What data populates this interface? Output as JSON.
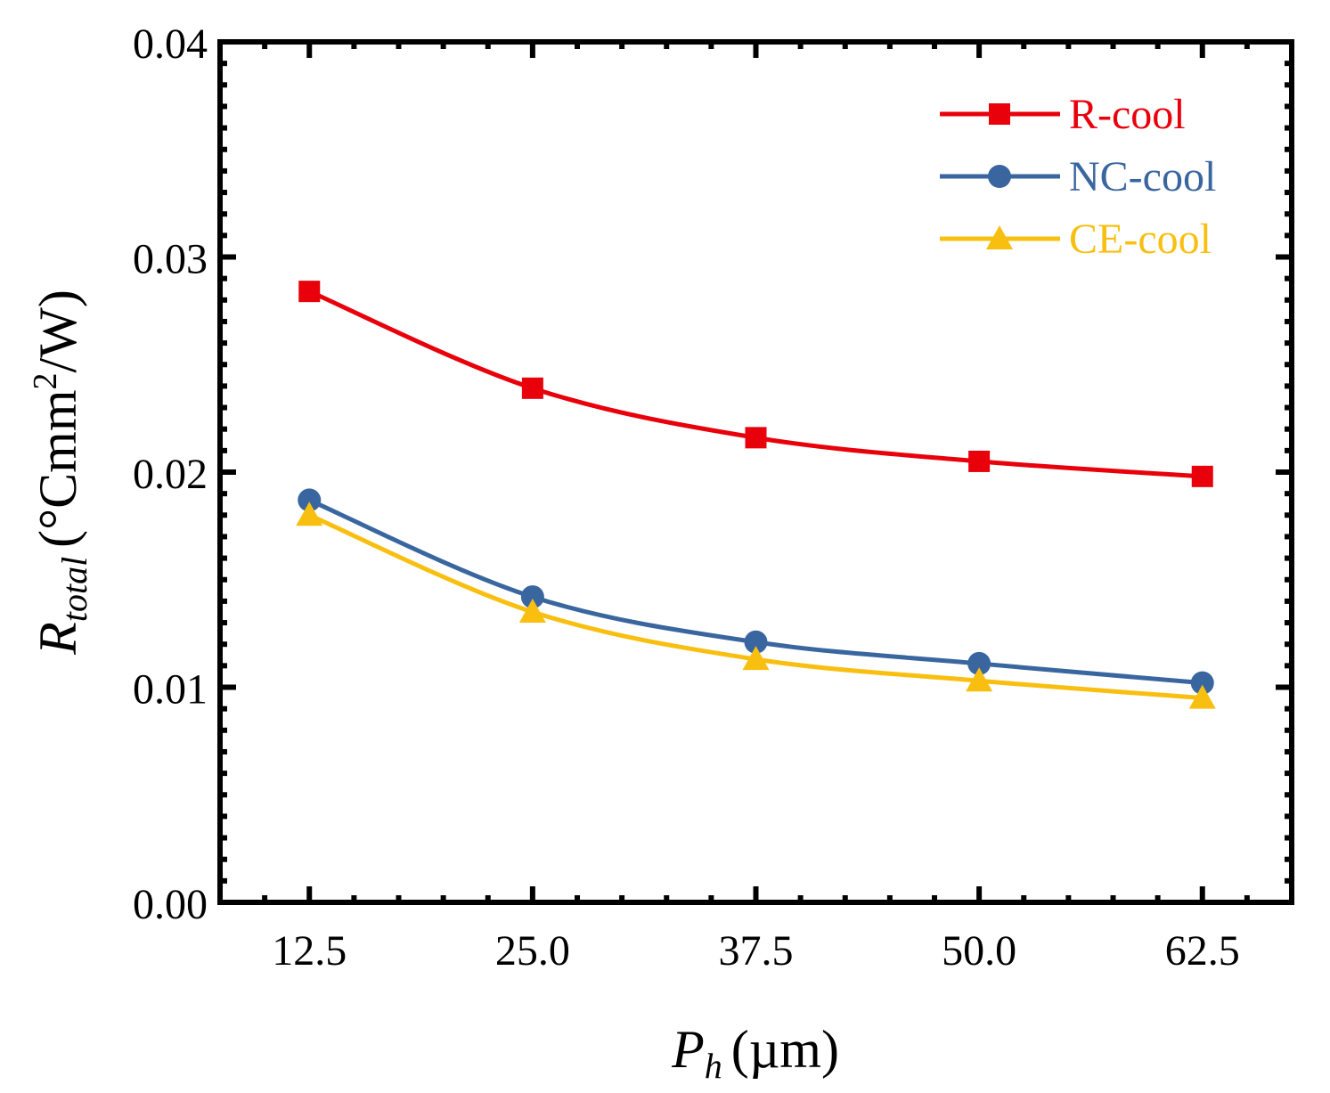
{
  "chart_data": {
    "type": "line",
    "title": "",
    "xlabel_main": "P",
    "xlabel_sub": "h",
    "xlabel_unit": "(µm)",
    "ylabel_main": "R",
    "ylabel_sub": "total",
    "ylabel_unit_pre": "(°Cmm",
    "ylabel_unit_sup": "2",
    "ylabel_unit_post": "/W)",
    "x": [
      12.5,
      25.0,
      37.5,
      50.0,
      62.5
    ],
    "xlim": [
      7.5,
      67.5
    ],
    "ylim": [
      0,
      0.04
    ],
    "xticks": [
      "12.5",
      "25.0",
      "37.5",
      "50.0",
      "62.5"
    ],
    "yticks": [
      "0.00",
      "0.01",
      "0.02",
      "0.03",
      "0.04"
    ],
    "grid": false,
    "legend_position": "top-right",
    "series": [
      {
        "name": "R-cool",
        "marker": "square",
        "color": "#e8000b",
        "values": [
          0.0284,
          0.0239,
          0.0216,
          0.0205,
          0.0198
        ]
      },
      {
        "name": "NC-cool",
        "marker": "circle",
        "color": "#3a66a0",
        "values": [
          0.0187,
          0.0142,
          0.0121,
          0.0111,
          0.0102
        ]
      },
      {
        "name": "CE-cool",
        "marker": "triangle",
        "color": "#f9bf10",
        "values": [
          0.018,
          0.0135,
          0.0113,
          0.0103,
          0.0095
        ]
      }
    ]
  }
}
